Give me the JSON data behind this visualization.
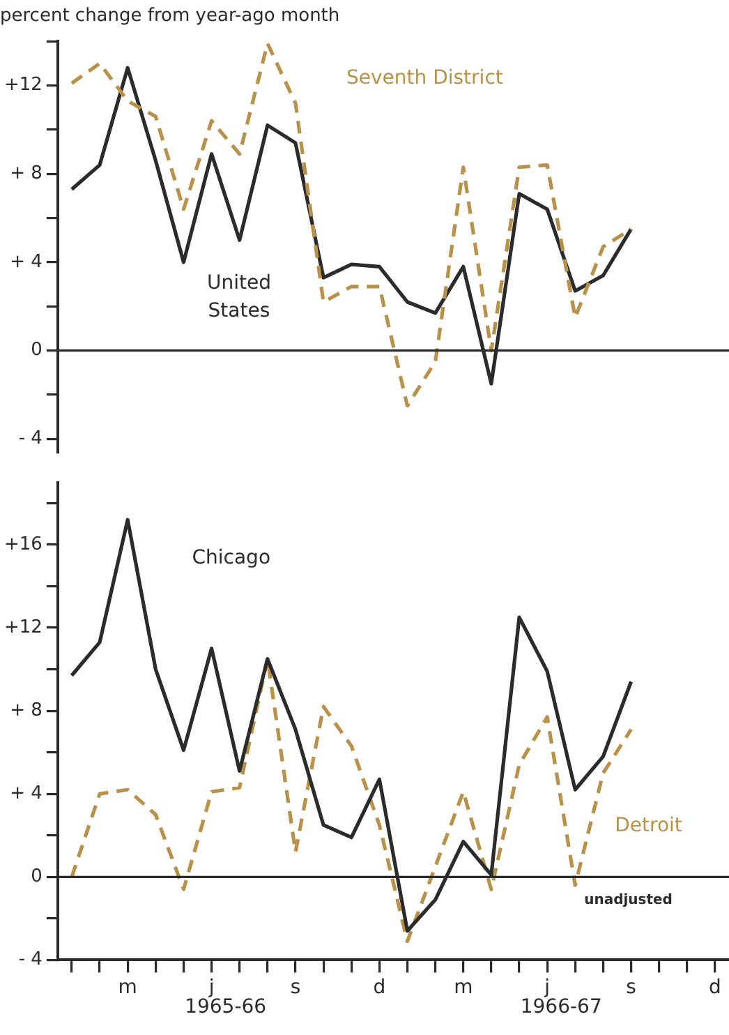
{
  "chart_data": [
    {
      "type": "line",
      "ylabel": "percent change from year-ago month",
      "categories": [
        null,
        null,
        null,
        null,
        null,
        null,
        null,
        null,
        null,
        null,
        null,
        null,
        null,
        null,
        null,
        null,
        null,
        null,
        null,
        null,
        null,
        null,
        null,
        null
      ],
      "series": [
        {
          "name": "Seventh District",
          "color": "#b8924a",
          "line_style": "dashed",
          "values": [
            12.1,
            13.0,
            11.3,
            10.6,
            6.4,
            10.4,
            8.9,
            13.9,
            11.2,
            2.2,
            2.9,
            2.9,
            -2.5,
            -0.5,
            8.3,
            0.0,
            8.3,
            8.4,
            1.5,
            4.7,
            5.5,
            null,
            null,
            null
          ]
        },
        {
          "name": "United States",
          "color": "#2b2b2b",
          "line_style": "solid",
          "values": [
            7.3,
            8.4,
            12.8,
            8.6,
            4.0,
            8.9,
            5.0,
            10.2,
            9.4,
            3.3,
            3.9,
            3.8,
            2.2,
            1.7,
            3.8,
            -1.5,
            7.1,
            6.4,
            2.7,
            3.4,
            5.5,
            null,
            null,
            null
          ]
        }
      ],
      "ylim": [
        -4.6,
        14
      ],
      "yticks": [
        {
          "value": -4,
          "label": "- 4"
        },
        {
          "value": -2,
          "label": null
        },
        {
          "value": 0,
          "label": "0"
        },
        {
          "value": 2,
          "label": null
        },
        {
          "value": 4,
          "label": "+ 4"
        },
        {
          "value": 6,
          "label": null
        },
        {
          "value": 8,
          "label": "+ 8"
        },
        {
          "value": 10,
          "label": null
        },
        {
          "value": 12,
          "label": "+12"
        },
        {
          "value": 14,
          "label": null
        }
      ],
      "ref_lines": [
        {
          "axis": "y",
          "value": 0,
          "color": "#2b2b2b"
        }
      ],
      "tick_labels": "y",
      "grid": false,
      "legend": false,
      "marker": "none"
    },
    {
      "type": "line",
      "categories": [
        null,
        null,
        "m",
        null,
        null,
        "j",
        null,
        null,
        "s",
        null,
        null,
        "d",
        null,
        null,
        "m",
        null,
        null,
        "j",
        null,
        null,
        "s",
        null,
        null,
        "d"
      ],
      "series": [
        {
          "name": "Chicago",
          "color": "#2b2b2b",
          "line_style": "solid",
          "values": [
            9.7,
            11.3,
            17.2,
            10.0,
            6.1,
            11.0,
            5.1,
            10.5,
            7.1,
            2.5,
            1.9,
            4.7,
            -2.6,
            -1.1,
            1.7,
            0.1,
            12.5,
            9.9,
            4.2,
            5.8,
            9.4,
            null,
            null,
            null
          ]
        },
        {
          "name": "Detroit",
          "color": "#b8924a",
          "line_style": "dashed",
          "values": [
            0.0,
            4.0,
            4.2,
            3.0,
            -0.6,
            4.1,
            4.3,
            10.5,
            1.2,
            8.2,
            6.3,
            2.5,
            -3.1,
            0.5,
            4.1,
            -0.6,
            5.4,
            7.7,
            -0.4,
            5.0,
            7.1,
            null,
            null,
            null
          ]
        }
      ],
      "ylim": [
        -4,
        19
      ],
      "yticks": [
        {
          "value": -4,
          "label": "- 4"
        },
        {
          "value": -2,
          "label": null
        },
        {
          "value": 0,
          "label": "0"
        },
        {
          "value": 2,
          "label": null
        },
        {
          "value": 4,
          "label": "+ 4"
        },
        {
          "value": 6,
          "label": null
        },
        {
          "value": 8,
          "label": "+ 8"
        },
        {
          "value": 10,
          "label": null
        },
        {
          "value": 12,
          "label": "+12"
        },
        {
          "value": 14,
          "label": null
        },
        {
          "value": 16,
          "label": "+16"
        },
        {
          "value": 18,
          "label": null
        }
      ],
      "ref_lines": [
        {
          "axis": "y",
          "value": 0,
          "color": "#2b2b2b"
        }
      ],
      "annotations": [
        "unadjusted",
        "1965-66",
        "1966-67"
      ],
      "grid": false,
      "legend": false,
      "marker": "none"
    }
  ]
}
